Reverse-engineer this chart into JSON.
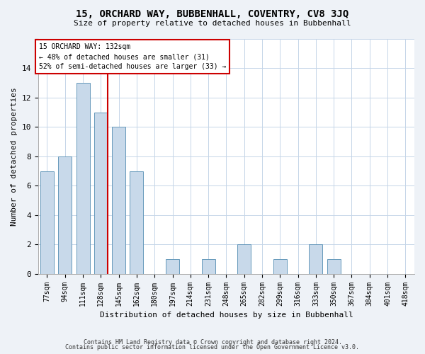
{
  "title": "15, ORCHARD WAY, BUBBENHALL, COVENTRY, CV8 3JQ",
  "subtitle": "Size of property relative to detached houses in Bubbenhall",
  "xlabel": "Distribution of detached houses by size in Bubbenhall",
  "ylabel": "Number of detached properties",
  "categories": [
    "77sqm",
    "94sqm",
    "111sqm",
    "128sqm",
    "145sqm",
    "162sqm",
    "180sqm",
    "197sqm",
    "214sqm",
    "231sqm",
    "248sqm",
    "265sqm",
    "282sqm",
    "299sqm",
    "316sqm",
    "333sqm",
    "350sqm",
    "367sqm",
    "384sqm",
    "401sqm",
    "418sqm"
  ],
  "values": [
    7,
    8,
    13,
    11,
    10,
    7,
    0,
    1,
    0,
    1,
    0,
    2,
    0,
    1,
    0,
    2,
    1,
    0,
    0,
    0,
    0
  ],
  "bar_color": "#c8d9ea",
  "bar_edge_color": "#6699bb",
  "vline_index": 3,
  "vline_color": "#cc0000",
  "annotation_line1": "15 ORCHARD WAY: 132sqm",
  "annotation_line2": "← 48% of detached houses are smaller (31)",
  "annotation_line3": "52% of semi-detached houses are larger (33) →",
  "annotation_box_color": "#cc0000",
  "ylim": [
    0,
    16
  ],
  "yticks": [
    0,
    2,
    4,
    6,
    8,
    10,
    12,
    14,
    16
  ],
  "footer1": "Contains HM Land Registry data © Crown copyright and database right 2024.",
  "footer2": "Contains public sector information licensed under the Open Government Licence v3.0.",
  "bg_color": "#eef2f7",
  "plot_bg_color": "#ffffff",
  "grid_color": "#c5d5e8",
  "title_fontsize": 10,
  "subtitle_fontsize": 8,
  "tick_fontsize": 7,
  "ylabel_fontsize": 8,
  "xlabel_fontsize": 8
}
